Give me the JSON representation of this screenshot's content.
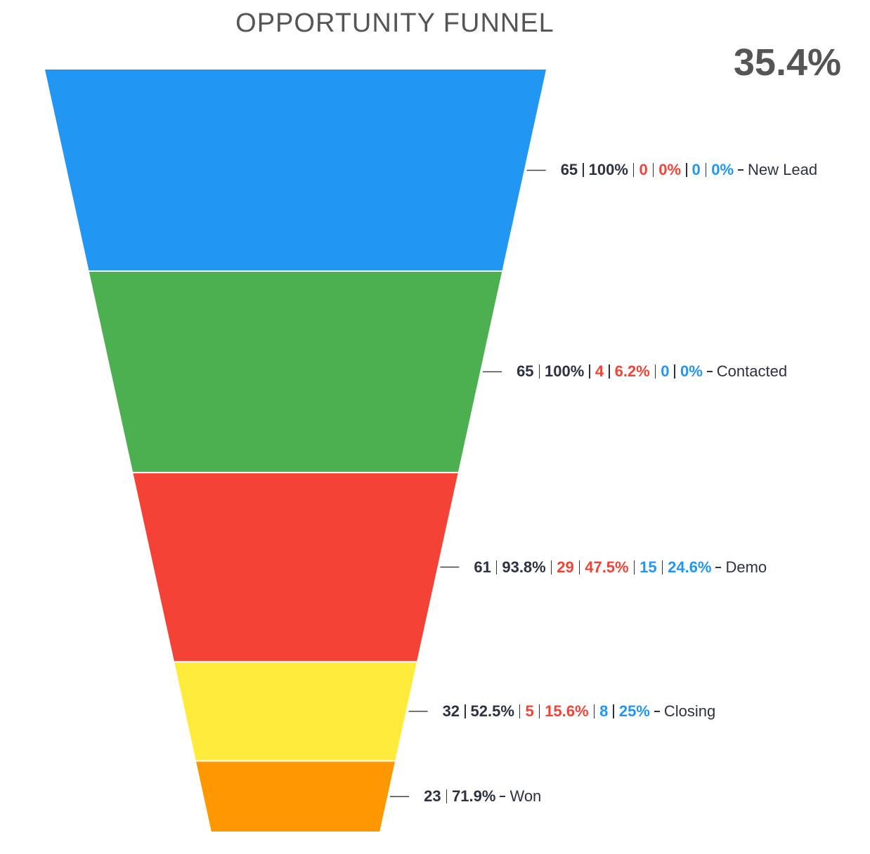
{
  "chart_data": {
    "type": "funnel",
    "title": "OPPORTUNITY FUNNEL",
    "conversion_rate": {
      "value": 35.4,
      "label": "35.4%"
    },
    "categories": [
      "New Lead",
      "Contacted",
      "Demo",
      "Closing",
      "Won"
    ],
    "values": [
      65,
      65,
      61,
      32,
      23
    ],
    "colors": [
      "#2196f3",
      "#4caf50",
      "#f44336",
      "#ffeb3b",
      "#ff9800"
    ],
    "conversion": {
      "values": [
        100,
        100,
        93.8,
        52.5,
        71.9
      ],
      "value_labels": [
        "100%",
        "100%",
        "93.8%",
        "52.5%",
        "71.9%"
      ],
      "color": "#2d3142"
    },
    "lost": {
      "values": [
        0,
        4,
        29,
        5,
        null
      ],
      "color": "#f44336"
    },
    "lost_pct": {
      "values": [
        0,
        6.2,
        47.5,
        15.6,
        null
      ],
      "value_labels": [
        "0%",
        "6.2%",
        "47.5%",
        "15.6%",
        null
      ],
      "color": "#f44336"
    },
    "other": {
      "values": [
        0,
        0,
        15,
        8,
        null
      ],
      "color": "#2196f3"
    },
    "other_pct": {
      "values": [
        0,
        0,
        24.6,
        25,
        null
      ],
      "value_labels": [
        "0%",
        "0%",
        "24.6%",
        "25%",
        null
      ],
      "color": "#2196f3"
    }
  }
}
